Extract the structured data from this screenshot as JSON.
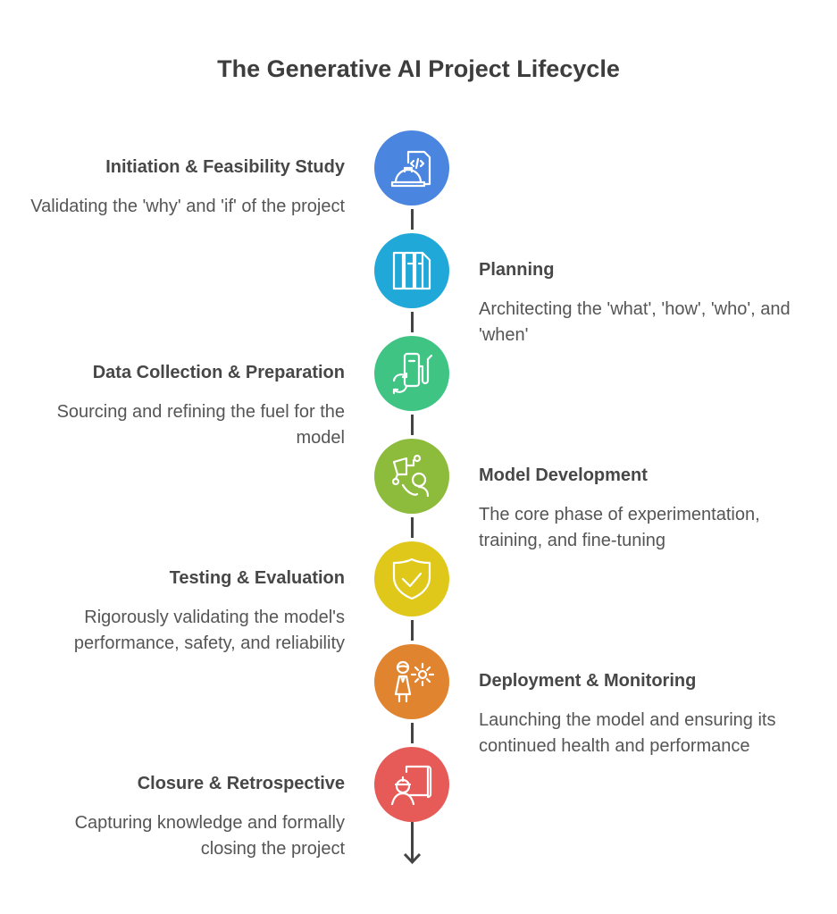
{
  "title": "The Generative AI Project Lifecycle",
  "steps": [
    {
      "heading": "Initiation & Feasibility Study",
      "description": "Validating the 'why' and 'if' of the project",
      "side": "left",
      "color": "#4a86e0",
      "icon": "hard-hat-code-icon"
    },
    {
      "heading": "Planning",
      "description": "Architecting the 'what', 'how', 'who', and 'when'",
      "side": "right",
      "color": "#20a8d8",
      "icon": "blueprint-columns-icon"
    },
    {
      "heading": "Data Collection & Preparation",
      "description": "Sourcing and refining the fuel for the model",
      "side": "left",
      "color": "#3fc484",
      "icon": "fuel-pump-refresh-icon"
    },
    {
      "heading": "Model Development",
      "description": "The core phase of experimentation, training, and fine-tuning",
      "side": "right",
      "color": "#8dbb3c",
      "icon": "person-network-icon"
    },
    {
      "heading": "Testing & Evaluation",
      "description": "Rigorously validating the model's performance, safety, and reliability",
      "side": "left",
      "color": "#e0c81a",
      "icon": "shield-check-icon"
    },
    {
      "heading": "Deployment & Monitoring",
      "description": "Launching the model and ensuring its continued health and performance",
      "side": "right",
      "color": "#e08430",
      "icon": "person-gear-icon"
    },
    {
      "heading": "Closure & Retrospective",
      "description": "Capturing knowledge and formally closing the project",
      "side": "left",
      "color": "#e65a57",
      "icon": "engineer-blueprint-icon"
    }
  ]
}
